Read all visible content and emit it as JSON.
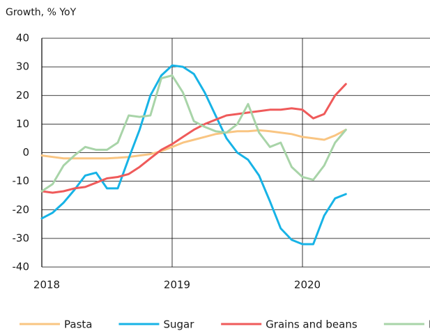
{
  "chart_data": {
    "type": "line",
    "title": "Growth, % YoY",
    "x": [
      2018,
      2018.083,
      2018.167,
      2018.25,
      2018.333,
      2018.417,
      2018.5,
      2018.583,
      2018.667,
      2018.75,
      2018.833,
      2018.917,
      2019,
      2019.083,
      2019.167,
      2019.25,
      2019.333,
      2019.417,
      2019.5,
      2019.583,
      2019.667,
      2019.75,
      2019.833,
      2019.917,
      2020,
      2020.083,
      2020.167,
      2020.25,
      2020.333
    ],
    "series": [
      {
        "name": "Pasta",
        "color": "#f9c582",
        "values": [
          -1,
          -1.5,
          -2,
          -2,
          -2,
          -2,
          -2,
          -1.8,
          -1.5,
          -1,
          -0.5,
          0.5,
          2,
          3.5,
          4.5,
          5.5,
          6.5,
          7,
          7.5,
          7.5,
          7.8,
          7.5,
          7,
          6.5,
          5.5,
          5,
          4.5,
          6,
          8
        ]
      },
      {
        "name": "Sugar",
        "color": "#17b3e6",
        "values": [
          -23,
          -21,
          -17.5,
          -13,
          -8,
          -7,
          -12.5,
          -12.5,
          -2,
          8,
          20,
          27,
          30.5,
          30,
          27.5,
          21,
          13,
          5,
          0,
          -2.5,
          -8,
          -17,
          -26.5,
          -30.5,
          -32,
          -32,
          -22,
          -16,
          -14.5
        ]
      },
      {
        "name": "Grains and beans",
        "color": "#ef5a5a",
        "values": [
          -13.5,
          -14,
          -13.5,
          -12.5,
          -12,
          -10.5,
          -9,
          -8.5,
          -7.5,
          -5,
          -2,
          1,
          3,
          5.5,
          8,
          10,
          11.5,
          13,
          13.5,
          14,
          14.5,
          15,
          15,
          15.5,
          15,
          12,
          13.5,
          20,
          24
        ]
      },
      {
        "name": "Eggs",
        "color": "#a8d4a8",
        "values": [
          -13.5,
          -11,
          -4.5,
          -1,
          2,
          1,
          1,
          3.5,
          13,
          12.5,
          13,
          26,
          27,
          21,
          11,
          9,
          7.5,
          7,
          10,
          17,
          7,
          2,
          3.5,
          -5,
          -8.5,
          -9.5,
          -4.5,
          3.5,
          8
        ]
      }
    ],
    "xlim": [
      2018,
      2021
    ],
    "xticks": [
      2018,
      2019,
      2020
    ],
    "ylim": [
      -40,
      40
    ],
    "yticks": [
      -40,
      -30,
      -20,
      -10,
      0,
      10,
      20,
      30,
      40
    ],
    "grid": true,
    "legend": "bottom"
  }
}
